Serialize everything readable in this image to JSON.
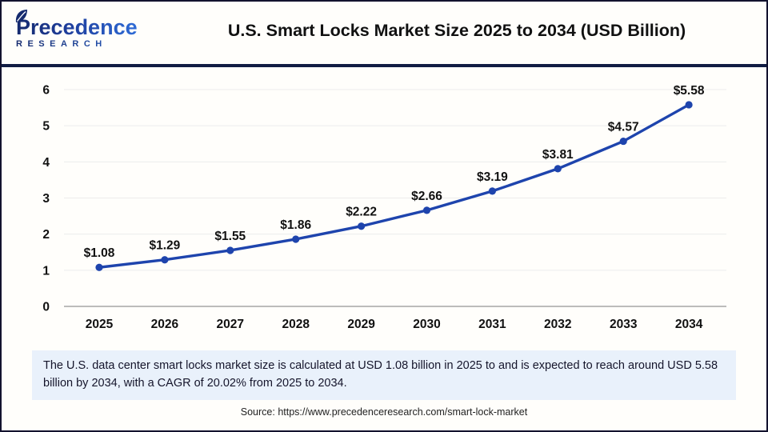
{
  "header": {
    "logo_name": "Precedence",
    "logo_subname": "RESEARCH",
    "title": "U.S. Smart Locks Market Size 2025 to 2034 (USD Billion)"
  },
  "chart_data": {
    "type": "line",
    "title": "U.S. Smart Locks Market Size 2025 to 2034 (USD Billion)",
    "categories": [
      "2025",
      "2026",
      "2027",
      "2028",
      "2029",
      "2030",
      "2031",
      "2032",
      "2033",
      "2034"
    ],
    "values": [
      1.08,
      1.29,
      1.55,
      1.86,
      2.22,
      2.66,
      3.19,
      3.81,
      4.57,
      5.58
    ],
    "point_labels": [
      "$1.08",
      "$1.29",
      "$1.55",
      "$1.86",
      "$2.22",
      "$2.66",
      "$3.19",
      "$3.81",
      "$4.57",
      "$5.58"
    ],
    "xlabel": "",
    "ylabel": "",
    "ylim": [
      0,
      6
    ],
    "yticks": [
      0,
      1,
      2,
      3,
      4,
      5,
      6
    ],
    "grid": true,
    "legend": false,
    "line_color": "#1e44ad",
    "point_color": "#1e44ad"
  },
  "footer": {
    "note": "The U.S. data center smart locks market size is calculated at USD 1.08 billion in 2025 to and is expected to reach around USD 5.58 billion by 2034, with a CAGR of 20.02% from 2025 to 2034.",
    "source": "Source: https://www.precedenceresearch.com/smart-lock-market"
  },
  "colors": {
    "header_rule": "#111c44",
    "frame_border": "#12122e",
    "note_background": "#e9f1fb",
    "grid_line": "#ececec",
    "zero_axis": "#a6a6a6",
    "text": "#111111"
  }
}
